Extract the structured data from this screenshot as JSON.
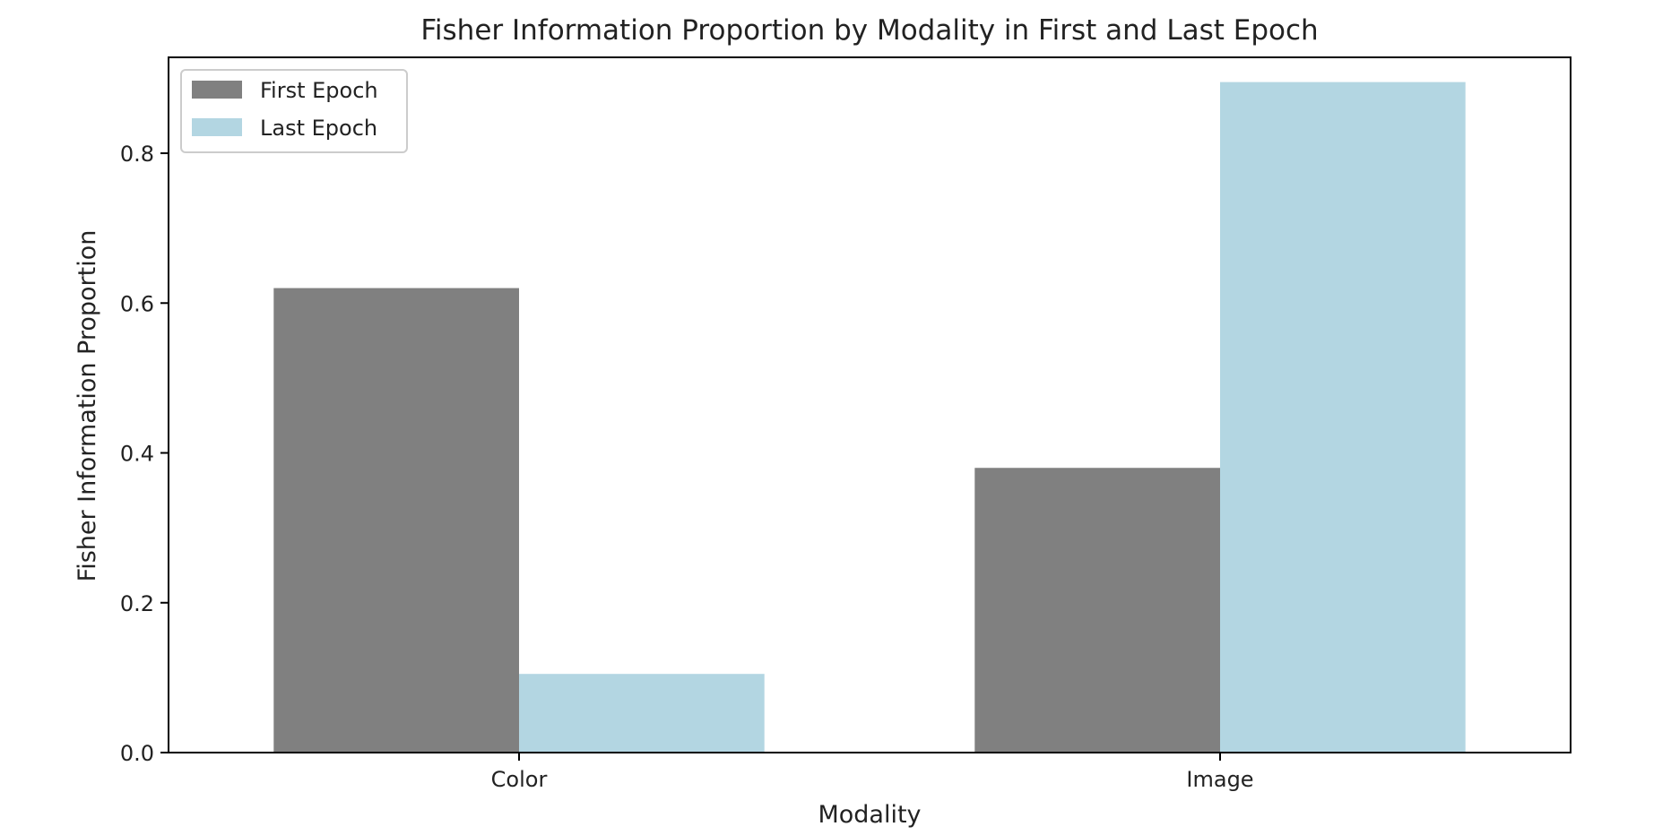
{
  "chart_data": {
    "type": "bar",
    "title": "Fisher Information Proportion by Modality in First and Last Epoch",
    "xlabel": "Modality",
    "ylabel": "Fisher Information Proportion",
    "categories": [
      "Color",
      "Image"
    ],
    "series": [
      {
        "name": "First Epoch",
        "values": [
          0.62,
          0.38
        ],
        "color": "#808080"
      },
      {
        "name": "Last Epoch",
        "values": [
          0.105,
          0.895
        ],
        "color": "#b3d6e2"
      }
    ],
    "ylim": [
      0,
      0.928
    ],
    "yticks": [
      0.0,
      0.2,
      0.4,
      0.6,
      0.8
    ],
    "ytick_labels": [
      "0.0",
      "0.2",
      "0.4",
      "0.6",
      "0.8"
    ],
    "grid": false,
    "legend_position": "top-left"
  }
}
